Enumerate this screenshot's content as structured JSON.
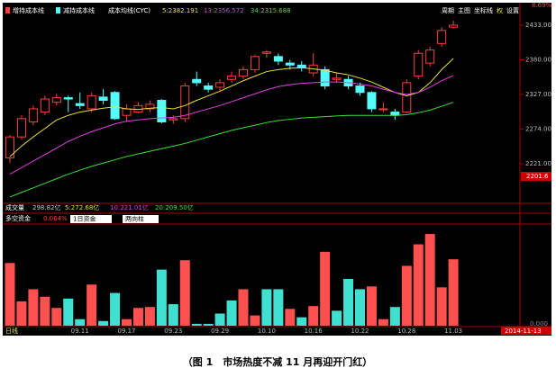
{
  "header": {
    "items": [
      "增持成本线",
      "减持成本线",
      "成本均线(CYC)"
    ],
    "toolbar": [
      "周期",
      "主图",
      "坐标线",
      "权",
      "设置"
    ],
    "corner": "8.69%"
  },
  "volume_info": {
    "label": "成交量",
    "value": "298.82亿",
    "ma5": "5:272.68亿",
    "ma10": "10:221.01亿",
    "ma20": "20:209.50亿"
  },
  "fund_info": {
    "label": "多空资金",
    "value": "0.064%",
    "period": "1日资金",
    "style": "两向柱"
  },
  "footer": {
    "period": "日线",
    "date": "2014-11-13"
  },
  "caption": "（图 1　市场热度不减 11 月再迎开门红）",
  "chart_data": [
    {
      "type": "candlestick",
      "categories": [
        null,
        null,
        null,
        null,
        null,
        null,
        "09.11",
        null,
        null,
        null,
        "09.17",
        null,
        null,
        null,
        "09.23",
        null,
        null,
        null,
        "09.29",
        null,
        null,
        null,
        "10.10",
        null,
        null,
        null,
        "10.16",
        null,
        null,
        null,
        "10.22",
        null,
        null,
        null,
        "10.28",
        null,
        null,
        null,
        "11.03"
      ],
      "open": [
        2230,
        2262,
        2285,
        2300,
        2315,
        2322,
        2313,
        2305,
        2323,
        2330,
        2295,
        2300,
        2305,
        2318,
        2288,
        2290,
        2350,
        2340,
        2338,
        2350,
        2355,
        2365,
        2390,
        2385,
        2375,
        2372,
        2360,
        2365,
        2350,
        2350,
        2340,
        2330,
        2305,
        2300,
        2300,
        2355,
        2375,
        2405,
        2430
      ],
      "high": [
        2265,
        2295,
        2310,
        2325,
        2328,
        2325,
        2330,
        2330,
        2335,
        2332,
        2312,
        2315,
        2318,
        2320,
        2295,
        2345,
        2362,
        2345,
        2350,
        2362,
        2370,
        2388,
        2395,
        2390,
        2380,
        2378,
        2390,
        2370,
        2360,
        2355,
        2345,
        2332,
        2315,
        2305,
        2350,
        2395,
        2400,
        2430,
        2440
      ],
      "low": [
        2222,
        2258,
        2280,
        2295,
        2310,
        2300,
        2305,
        2300,
        2312,
        2288,
        2285,
        2298,
        2300,
        2283,
        2282,
        2285,
        2340,
        2330,
        2333,
        2345,
        2350,
        2360,
        2383,
        2372,
        2365,
        2362,
        2355,
        2335,
        2345,
        2335,
        2325,
        2300,
        2300,
        2288,
        2298,
        2350,
        2370,
        2400,
        2428
      ],
      "close": [
        2262,
        2290,
        2305,
        2320,
        2322,
        2320,
        2310,
        2325,
        2318,
        2290,
        2305,
        2310,
        2312,
        2285,
        2290,
        2340,
        2345,
        2335,
        2345,
        2355,
        2365,
        2385,
        2392,
        2378,
        2372,
        2368,
        2372,
        2340,
        2352,
        2340,
        2330,
        2305,
        2305,
        2295,
        2345,
        2390,
        2395,
        2425,
        2433
      ],
      "up_color": "#ff3c3c",
      "down_color": "#54fcfc",
      "series": [
        {
          "name": "5:2382.191",
          "color": "#e8e03c",
          "values": [
            2232,
            2248,
            2262,
            2275,
            2288,
            2295,
            2300,
            2303,
            2306,
            2308,
            2305,
            2304,
            2306,
            2307,
            2305,
            2310,
            2318,
            2325,
            2332,
            2340,
            2348,
            2355,
            2362,
            2365,
            2367,
            2368,
            2366,
            2364,
            2360,
            2357,
            2352,
            2346,
            2338,
            2330,
            2325,
            2330,
            2345,
            2365,
            2382
          ]
        },
        {
          "name": "13:2356.572",
          "color": "#e040e0",
          "values": [
            2205,
            2215,
            2225,
            2235,
            2245,
            2255,
            2263,
            2270,
            2276,
            2282,
            2286,
            2288,
            2290,
            2291,
            2292,
            2295,
            2300,
            2305,
            2310,
            2316,
            2322,
            2328,
            2334,
            2339,
            2342,
            2344,
            2345,
            2346,
            2346,
            2345,
            2343,
            2340,
            2335,
            2330,
            2327,
            2330,
            2338,
            2348,
            2356
          ]
        },
        {
          "name": "34:2315.688",
          "color": "#3ce03c",
          "values": [
            2170,
            2177,
            2184,
            2191,
            2198,
            2205,
            2211,
            2217,
            2222,
            2227,
            2232,
            2236,
            2240,
            2244,
            2248,
            2252,
            2257,
            2262,
            2267,
            2272,
            2276,
            2280,
            2284,
            2287,
            2289,
            2291,
            2292,
            2293,
            2294,
            2295,
            2295,
            2295,
            2295,
            2295,
            2296,
            2299,
            2303,
            2309,
            2315
          ]
        }
      ],
      "ylim": [
        2161,
        2464
      ],
      "yticks": [
        {
          "value": 2433,
          "label": "2433.00"
        },
        {
          "value": 2380,
          "label": "2380.00"
        },
        {
          "value": 2327,
          "label": "2327.00"
        },
        {
          "value": 2274,
          "label": "2274.00"
        },
        {
          "value": 2221,
          "label": "2221.00"
        }
      ],
      "low_marker": 2201.6
    },
    {
      "type": "bar",
      "values": [
        67,
        26,
        39,
        31,
        19,
        29,
        7,
        44,
        5,
        35,
        7,
        19,
        20,
        60,
        23,
        70,
        2,
        2,
        13,
        27,
        39,
        11,
        39,
        39,
        18,
        9,
        21,
        79,
        16,
        50,
        39,
        42,
        7,
        20,
        64,
        87,
        98,
        41,
        71
      ],
      "colors": [
        "#ff5050",
        "#ff5050",
        "#ff5050",
        "#ff5050",
        "#ff5050",
        "#40e0d0",
        "#40e0d0",
        "#ff5050",
        "#40e0d0",
        "#40e0d0",
        "#ff5050",
        "#ff5050",
        "#ff5050",
        "#40e0d0",
        "#40e0d0",
        "#ff5050",
        "#40e0d0",
        "#40e0d0",
        "#40e0d0",
        "#40e0d0",
        "#ff5050",
        "#ff5050",
        "#40e0d0",
        "#40e0d0",
        "#ff5050",
        "#40e0d0",
        "#ff5050",
        "#ff5050",
        "#40e0d0",
        "#40e0d0",
        "#40e0d0",
        "#ff5050",
        "#ff5050",
        "#40e0d0",
        "#ff5050",
        "#ff5050",
        "#ff5050",
        "#ff5050",
        "#ff5050"
      ],
      "ylim": [
        0,
        100
      ],
      "yticks": [
        {
          "value": 0,
          "label": "0.000"
        }
      ]
    }
  ]
}
